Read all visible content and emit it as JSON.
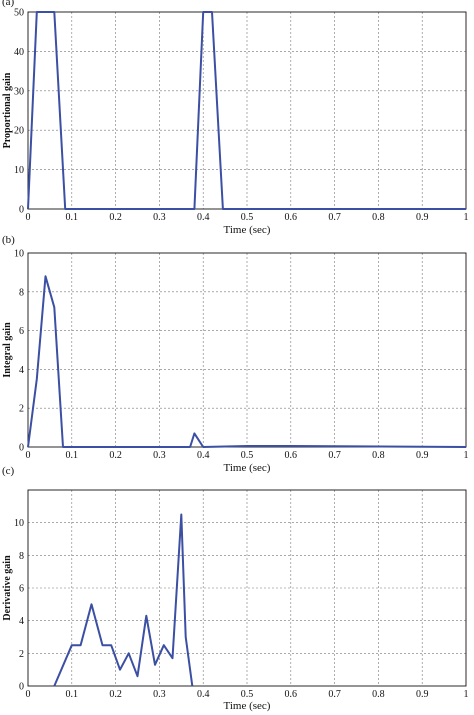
{
  "chart_data": [
    {
      "type": "line",
      "panel_label": "(a)",
      "xlabel": "Time (sec)",
      "ylabel": "Proportional gain",
      "xlim": [
        0,
        1
      ],
      "ylim": [
        0,
        50
      ],
      "x_ticks": [
        "0",
        "0.1",
        "0.2",
        "0.3",
        "0.4",
        "0.5",
        "0.6",
        "0.7",
        "0.8",
        "0.9",
        "1"
      ],
      "y_ticks": [
        "0",
        "10",
        "20",
        "30",
        "40",
        "50"
      ],
      "grid": true,
      "color": "#3b4fa3",
      "x": [
        0,
        0.02,
        0.06,
        0.085,
        0.38,
        0.4,
        0.42,
        0.445,
        1.0
      ],
      "y": [
        0,
        50,
        50,
        0,
        0,
        50,
        50,
        0,
        0
      ]
    },
    {
      "type": "line",
      "panel_label": "(b)",
      "xlabel": "Time (sec)",
      "ylabel": "Integral gain",
      "xlim": [
        0,
        1
      ],
      "ylim": [
        0,
        10
      ],
      "x_ticks": [
        "0",
        "0.1",
        "0.2",
        "0.3",
        "0.4",
        "0.5",
        "0.6",
        "0.7",
        "0.8",
        "0.9",
        "1"
      ],
      "y_ticks": [
        "0",
        "2",
        "4",
        "6",
        "8",
        "10"
      ],
      "grid": true,
      "color": "#3b4fa3",
      "x": [
        0,
        0.02,
        0.04,
        0.06,
        0.08,
        0.37,
        0.38,
        0.4,
        0.5,
        0.6,
        1.0
      ],
      "y": [
        0,
        3.5,
        8.8,
        7.2,
        0,
        0,
        0.7,
        0,
        0.05,
        0.05,
        0
      ]
    },
    {
      "type": "line",
      "panel_label": "(c)",
      "xlabel": "Time (sec)",
      "ylabel": "Derivative gain",
      "xlim": [
        0,
        1
      ],
      "ylim": [
        0,
        12
      ],
      "x_ticks": [
        "0",
        "0.1",
        "0.2",
        "0.3",
        "0.4",
        "0.5",
        "0.6",
        "0.7",
        "0.8",
        "0.9",
        "1"
      ],
      "y_ticks": [
        "0",
        "2",
        "4",
        "6",
        "8",
        "10"
      ],
      "grid": true,
      "color": "#3b4fa3",
      "x": [
        0.06,
        0.1,
        0.12,
        0.145,
        0.17,
        0.19,
        0.21,
        0.23,
        0.25,
        0.27,
        0.29,
        0.31,
        0.33,
        0.35,
        0.36,
        0.375
      ],
      "y": [
        0,
        2.5,
        2.5,
        5.0,
        2.5,
        2.5,
        1.0,
        2.0,
        0.6,
        4.3,
        1.3,
        2.5,
        1.7,
        10.5,
        3.0,
        0
      ]
    }
  ]
}
